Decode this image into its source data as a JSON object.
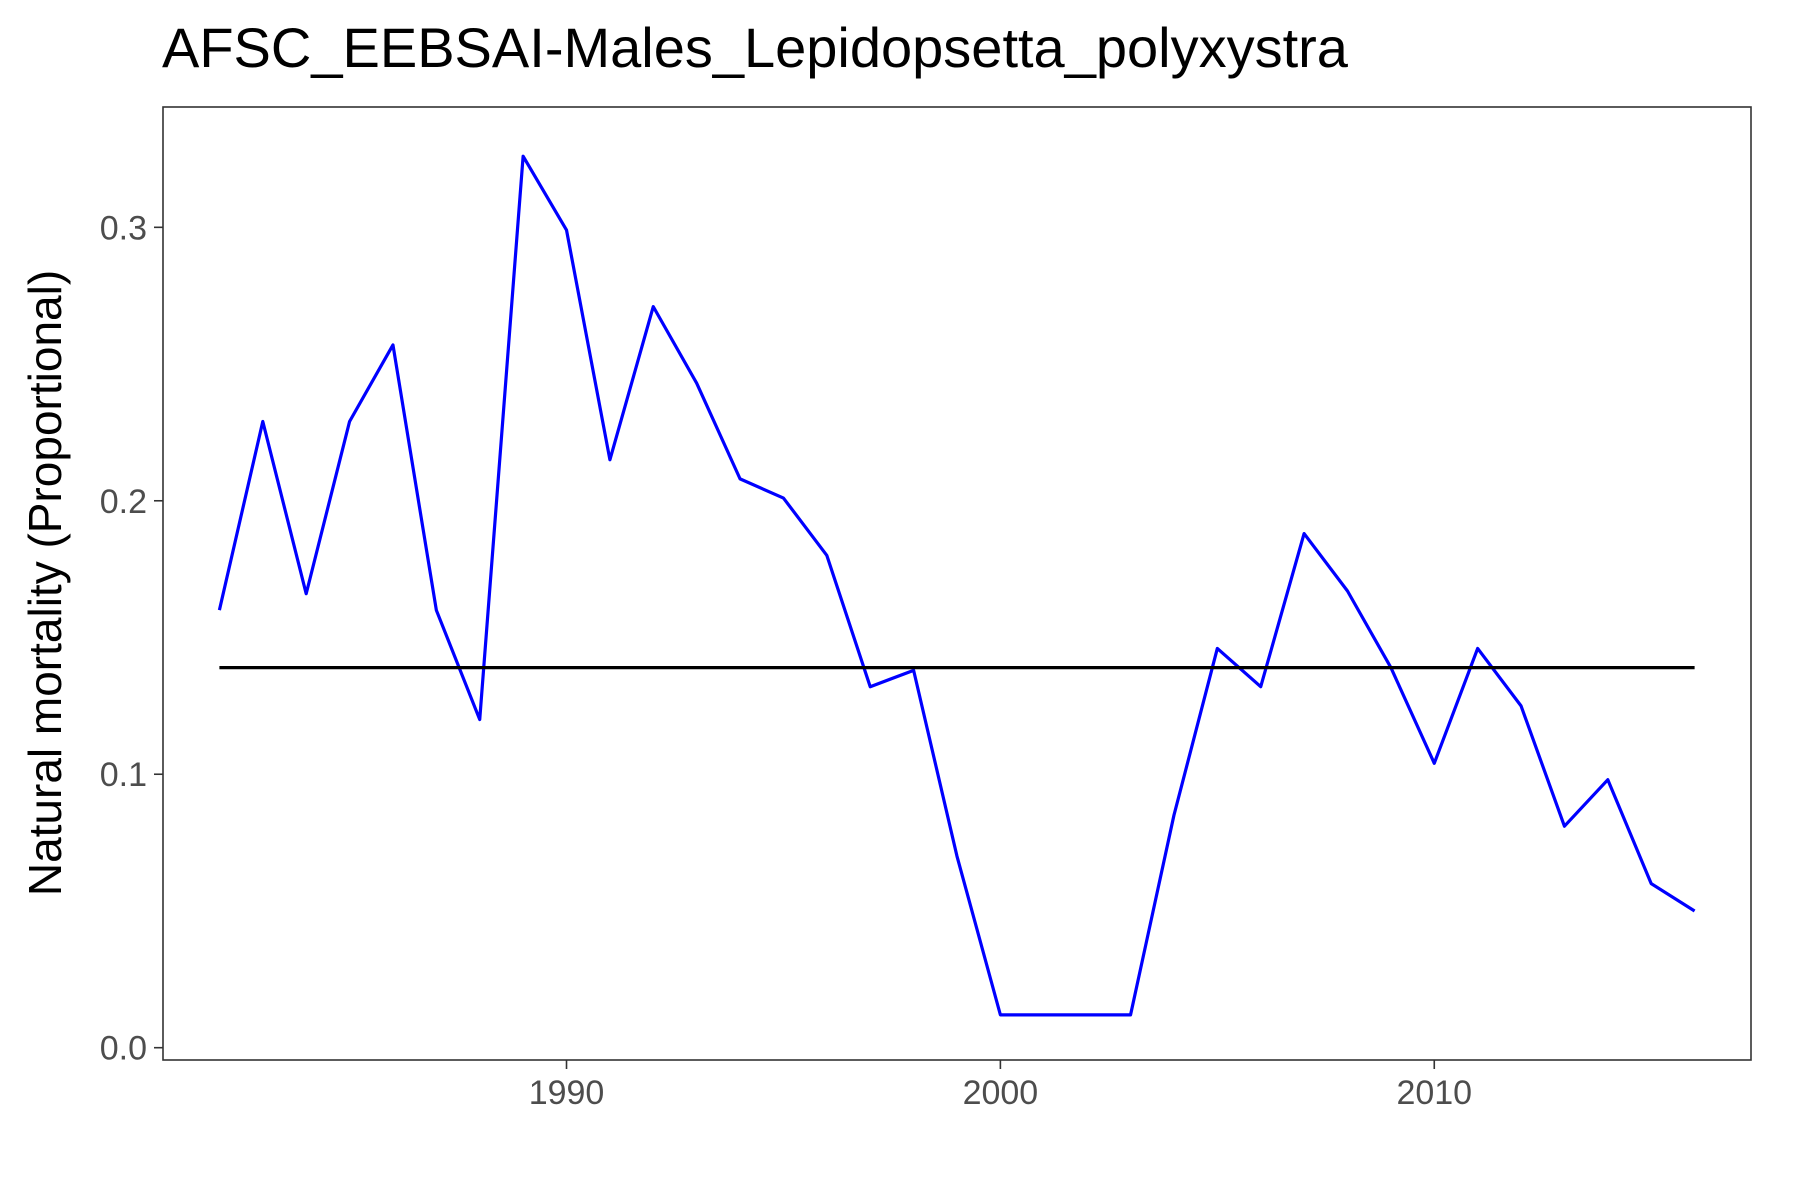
{
  "chart_data": {
    "type": "line",
    "title": "AFSC_EEBSAI-Males_Lepidopsetta_polyxystra",
    "xlabel": "",
    "ylabel": "Natural mortality (Proportional)",
    "xlim": [
      1980.7,
      2017.3
    ],
    "ylim": [
      -0.0045,
      0.344
    ],
    "xticks": [
      {
        "value": 1990,
        "label": "1990"
      },
      {
        "value": 2000,
        "label": "2000"
      },
      {
        "value": 2010,
        "label": "2010"
      }
    ],
    "yticks": [
      {
        "value": 0.0,
        "label": "0.0"
      },
      {
        "value": 0.1,
        "label": "0.1"
      },
      {
        "value": 0.2,
        "label": "0.2"
      },
      {
        "value": 0.3,
        "label": "0.3"
      }
    ],
    "grid": false,
    "legend": "none",
    "series": [
      {
        "color": "#0000ff",
        "x": [
          1982,
          1983,
          1984,
          1985,
          1986,
          1987,
          1988,
          1989,
          1990,
          1991,
          1992,
          1993,
          1994,
          1995,
          1996,
          1997,
          1998,
          1999,
          2000,
          2001,
          2002,
          2003,
          2004,
          2005,
          2006,
          2007,
          2008,
          2009,
          2010,
          2011,
          2012,
          2013,
          2014,
          2015,
          2016
        ],
        "y": [
          0.16,
          0.229,
          0.166,
          0.229,
          0.257,
          0.16,
          0.12,
          0.326,
          0.299,
          0.215,
          0.271,
          0.243,
          0.208,
          0.201,
          0.18,
          0.132,
          0.138,
          0.07,
          0.012,
          0.012,
          0.012,
          0.012,
          0.085,
          0.146,
          0.132,
          0.188,
          0.167,
          0.139,
          0.104,
          0.146,
          0.125,
          0.081,
          0.098,
          0.06,
          0.05
        ]
      },
      {
        "color": "#000000",
        "x": [
          1982,
          2016
        ],
        "y": [
          0.139,
          0.139
        ]
      }
    ]
  }
}
